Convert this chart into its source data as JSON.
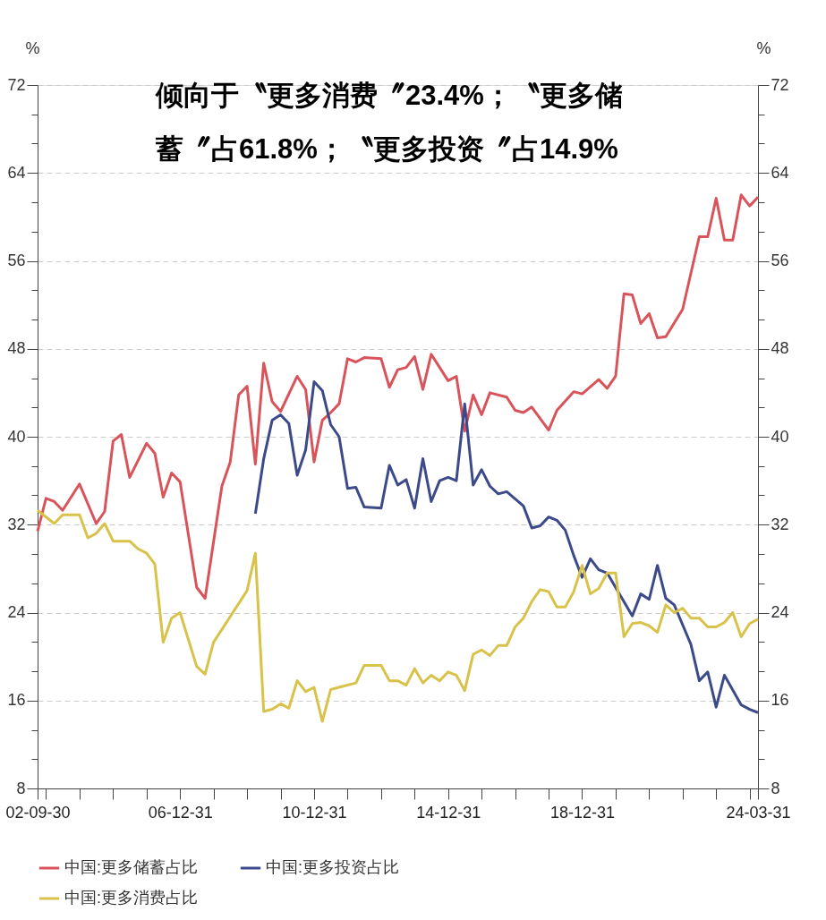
{
  "chart_data": {
    "type": "line",
    "title": "倾向于〝更多消费〞23.4%；〝更多储蓄〞占61.8%；〝更多投资〞占14.9%",
    "ylabel": "%",
    "y2label": "%",
    "xlim": [
      "2002-09-30",
      "2024-03-31"
    ],
    "xticks": [
      {
        "value": "2002-09-30",
        "label": "02-09-30"
      },
      {
        "value": "2002-12-31",
        "label": null
      },
      {
        "value": "2003-12-31",
        "label": null
      },
      {
        "value": "2004-12-31",
        "label": null
      },
      {
        "value": "2005-12-31",
        "label": null
      },
      {
        "value": "2006-12-31",
        "label": "06-12-31"
      },
      {
        "value": "2007-12-31",
        "label": null
      },
      {
        "value": "2008-12-31",
        "label": null
      },
      {
        "value": "2009-12-31",
        "label": null
      },
      {
        "value": "2010-12-31",
        "label": "10-12-31"
      },
      {
        "value": "2011-12-31",
        "label": null
      },
      {
        "value": "2012-12-31",
        "label": null
      },
      {
        "value": "2013-12-31",
        "label": null
      },
      {
        "value": "2014-12-31",
        "label": "14-12-31"
      },
      {
        "value": "2015-12-31",
        "label": null
      },
      {
        "value": "2016-12-31",
        "label": null
      },
      {
        "value": "2017-12-31",
        "label": null
      },
      {
        "value": "2018-12-31",
        "label": "18-12-31"
      },
      {
        "value": "2019-12-31",
        "label": null
      },
      {
        "value": "2020-12-31",
        "label": null
      },
      {
        "value": "2021-12-31",
        "label": null
      },
      {
        "value": "2022-12-31",
        "label": null
      },
      {
        "value": "2023-12-31",
        "label": null
      },
      {
        "value": "2024-03-31",
        "label": "24-03-31"
      }
    ],
    "ylim": [
      8,
      72
    ],
    "yticks": [
      8,
      {
        "value": 10.67,
        "label": null
      },
      {
        "value": 13.33,
        "label": null
      },
      16,
      {
        "value": 18.67,
        "label": null
      },
      {
        "value": 21.33,
        "label": null
      },
      24,
      {
        "value": 26.67,
        "label": null
      },
      {
        "value": 29.33,
        "label": null
      },
      32,
      {
        "value": 34.67,
        "label": null
      },
      {
        "value": 37.33,
        "label": null
      },
      40,
      {
        "value": 42.67,
        "label": null
      },
      {
        "value": 45.33,
        "label": null
      },
      48,
      {
        "value": 50.67,
        "label": null
      },
      {
        "value": 53.33,
        "label": null
      },
      56,
      {
        "value": 58.67,
        "label": null
      },
      {
        "value": 61.33,
        "label": null
      },
      64,
      {
        "value": 66.67,
        "label": null
      },
      {
        "value": 69.33,
        "label": null
      },
      72
    ],
    "y2lim": [
      8,
      72
    ],
    "y2ticks": [
      8,
      {
        "value": 10.67,
        "label": null
      },
      {
        "value": 13.33,
        "label": null
      },
      16,
      {
        "value": 18.67,
        "label": null
      },
      {
        "value": 21.33,
        "label": null
      },
      24,
      {
        "value": 26.67,
        "label": null
      },
      {
        "value": 29.33,
        "label": null
      },
      32,
      {
        "value": 34.67,
        "label": null
      },
      {
        "value": 37.33,
        "label": null
      },
      40,
      {
        "value": 42.67,
        "label": null
      },
      {
        "value": 45.33,
        "label": null
      },
      48,
      {
        "value": 50.67,
        "label": null
      },
      {
        "value": 53.33,
        "label": null
      },
      56,
      {
        "value": 58.67,
        "label": null
      },
      {
        "value": 61.33,
        "label": null
      },
      64,
      {
        "value": 66.67,
        "label": null
      },
      {
        "value": 69.33,
        "label": null
      },
      72
    ],
    "grid": "y",
    "legend": "bottom",
    "series": [
      {
        "name": "中国:更多储蓄占比",
        "color": "#d9545a",
        "x": [
          "2002-09-30",
          "2002-12-31",
          "2003-03-31",
          "2003-06-30",
          "2003-12-31",
          "2004-06-30",
          "2004-09-30",
          "2004-12-31",
          "2005-03-31",
          "2005-06-30",
          "2005-12-31",
          "2006-03-31",
          "2006-06-30",
          "2006-09-30",
          "2006-12-31",
          "2007-06-30",
          "2007-09-30",
          "2008-03-31",
          "2008-06-30",
          "2008-09-30",
          "2008-12-31",
          "2009-03-31",
          "2009-06-30",
          "2009-09-30",
          "2009-12-31",
          "2010-06-30",
          "2010-09-30",
          "2010-12-31",
          "2011-03-31",
          "2011-06-30",
          "2011-09-30",
          "2011-12-31",
          "2012-03-31",
          "2012-06-30",
          "2012-12-31",
          "2013-03-31",
          "2013-06-30",
          "2013-09-30",
          "2013-12-31",
          "2014-03-31",
          "2014-06-30",
          "2014-12-31",
          "2015-03-31",
          "2015-06-30",
          "2015-09-30",
          "2015-12-31",
          "2016-03-31",
          "2016-09-30",
          "2016-12-31",
          "2017-03-31",
          "2017-06-30",
          "2017-12-31",
          "2018-03-31",
          "2018-09-30",
          "2018-12-31",
          "2019-06-30",
          "2019-09-30",
          "2019-12-31",
          "2020-03-31",
          "2020-06-30",
          "2020-09-30",
          "2020-12-31",
          "2021-03-31",
          "2021-06-30",
          "2021-12-31",
          "2022-06-30",
          "2022-09-30",
          "2022-12-31",
          "2023-03-31",
          "2023-06-30",
          "2023-09-30",
          "2023-12-31",
          "2024-03-31"
        ],
        "values": [
          31.4,
          34.4,
          34.1,
          33.3,
          35.7,
          32.1,
          33.2,
          39.6,
          40.2,
          36.3,
          39.4,
          38.5,
          34.5,
          36.7,
          35.9,
          26.3,
          25.3,
          35.5,
          37.7,
          43.8,
          44.6,
          37.5,
          46.7,
          43.2,
          42.3,
          45.5,
          44.3,
          37.7,
          41.5,
          42.2,
          43.0,
          47.1,
          46.8,
          47.2,
          47.1,
          44.5,
          46.1,
          46.3,
          47.3,
          44.3,
          47.5,
          45.1,
          45.5,
          40.5,
          43.8,
          42.0,
          44.0,
          43.6,
          42.4,
          42.2,
          42.7,
          40.6,
          42.4,
          44.1,
          43.9,
          45.2,
          44.4,
          45.5,
          53.0,
          52.9,
          50.3,
          51.2,
          49.0,
          49.1,
          51.6,
          58.2,
          58.2,
          61.7,
          57.9,
          57.9,
          62.0,
          61.0,
          61.8
        ]
      },
      {
        "name": "中国:更多投资占比",
        "color": "#3c4a8a",
        "x": [
          "2009-03-31",
          "2009-06-30",
          "2009-09-30",
          "2009-12-31",
          "2010-03-31",
          "2010-06-30",
          "2010-09-30",
          "2010-12-31",
          "2011-03-31",
          "2011-06-30",
          "2011-09-30",
          "2011-12-31",
          "2012-03-31",
          "2012-06-30",
          "2012-12-31",
          "2013-03-31",
          "2013-06-30",
          "2013-09-30",
          "2013-12-31",
          "2014-03-31",
          "2014-06-30",
          "2014-09-30",
          "2014-12-31",
          "2015-03-31",
          "2015-06-30",
          "2015-09-30",
          "2015-12-31",
          "2016-03-31",
          "2016-06-30",
          "2016-09-30",
          "2017-03-31",
          "2017-06-30",
          "2017-09-30",
          "2017-12-31",
          "2018-03-31",
          "2018-06-30",
          "2018-09-30",
          "2018-12-31",
          "2019-03-31",
          "2019-06-30",
          "2019-09-30",
          "2020-06-30",
          "2020-09-30",
          "2020-12-31",
          "2021-03-31",
          "2021-06-30",
          "2021-09-30",
          "2022-03-31",
          "2022-06-30",
          "2022-09-30",
          "2022-12-31",
          "2023-03-31",
          "2023-09-30",
          "2023-12-31",
          "2024-03-31"
        ],
        "values": [
          33.0,
          38.0,
          41.5,
          42.0,
          41.2,
          36.5,
          38.8,
          45.0,
          44.2,
          41.1,
          40.0,
          35.3,
          35.4,
          33.6,
          33.5,
          37.4,
          35.6,
          36.1,
          33.5,
          38.0,
          34.1,
          36.0,
          36.3,
          36.0,
          43.0,
          35.6,
          37.0,
          35.5,
          34.8,
          35.0,
          33.7,
          31.7,
          31.9,
          32.7,
          32.4,
          31.5,
          29.2,
          27.2,
          28.9,
          27.9,
          27.6,
          23.7,
          25.7,
          25.2,
          28.3,
          25.3,
          24.7,
          21.1,
          17.8,
          18.6,
          15.4,
          18.3,
          15.6,
          15.2,
          14.9
        ]
      },
      {
        "name": "中国:更多消费占比",
        "color": "#d9c24a",
        "x": [
          "2002-09-30",
          "2003-03-31",
          "2003-06-30",
          "2003-12-31",
          "2004-03-31",
          "2004-06-30",
          "2004-09-30",
          "2004-12-31",
          "2005-06-30",
          "2005-09-30",
          "2005-12-31",
          "2006-03-31",
          "2006-06-30",
          "2006-09-30",
          "2006-12-31",
          "2007-06-30",
          "2007-09-30",
          "2007-12-31",
          "2008-12-31",
          "2009-03-31",
          "2009-06-30",
          "2009-09-30",
          "2009-12-31",
          "2010-03-31",
          "2010-06-30",
          "2010-09-30",
          "2010-12-31",
          "2011-03-31",
          "2011-06-30",
          "2011-09-30",
          "2011-12-31",
          "2012-03-31",
          "2012-06-30",
          "2012-12-31",
          "2013-03-31",
          "2013-06-30",
          "2013-09-30",
          "2013-12-31",
          "2014-03-31",
          "2014-06-30",
          "2014-09-30",
          "2014-12-31",
          "2015-03-31",
          "2015-06-30",
          "2015-09-30",
          "2015-12-31",
          "2016-03-31",
          "2016-06-30",
          "2016-09-30",
          "2016-12-31",
          "2017-03-31",
          "2017-06-30",
          "2017-09-30",
          "2017-12-31",
          "2018-03-31",
          "2018-06-30",
          "2018-09-30",
          "2018-12-31",
          "2019-03-31",
          "2019-06-30",
          "2019-09-30",
          "2019-12-31",
          "2020-03-31",
          "2020-06-30",
          "2020-09-30",
          "2020-12-31",
          "2021-03-31",
          "2021-06-30",
          "2021-09-30",
          "2021-12-31",
          "2022-03-31",
          "2022-06-30",
          "2022-09-30",
          "2022-12-31",
          "2023-03-31",
          "2023-06-30",
          "2023-09-30",
          "2023-12-31",
          "2024-03-31"
        ],
        "values": [
          33.3,
          32.1,
          32.9,
          32.9,
          30.8,
          31.2,
          32.1,
          30.5,
          30.5,
          29.8,
          29.4,
          28.4,
          21.3,
          23.5,
          24.0,
          19.1,
          18.4,
          21.3,
          26.0,
          29.4,
          15.0,
          15.2,
          15.7,
          15.3,
          17.8,
          16.8,
          17.2,
          14.1,
          17.0,
          17.2,
          17.4,
          17.6,
          19.2,
          19.2,
          17.8,
          17.8,
          17.4,
          18.9,
          17.6,
          18.3,
          17.8,
          18.6,
          18.3,
          16.9,
          20.2,
          20.6,
          20.1,
          21.0,
          21.0,
          22.7,
          23.5,
          25.0,
          26.1,
          25.9,
          24.5,
          24.5,
          25.9,
          28.3,
          25.7,
          26.2,
          27.6,
          27.6,
          21.8,
          23.0,
          23.1,
          22.8,
          22.2,
          24.7,
          24.0,
          24.4,
          23.5,
          23.5,
          22.7,
          22.7,
          23.1,
          24.0,
          21.8,
          23.0,
          23.4
        ]
      }
    ]
  }
}
